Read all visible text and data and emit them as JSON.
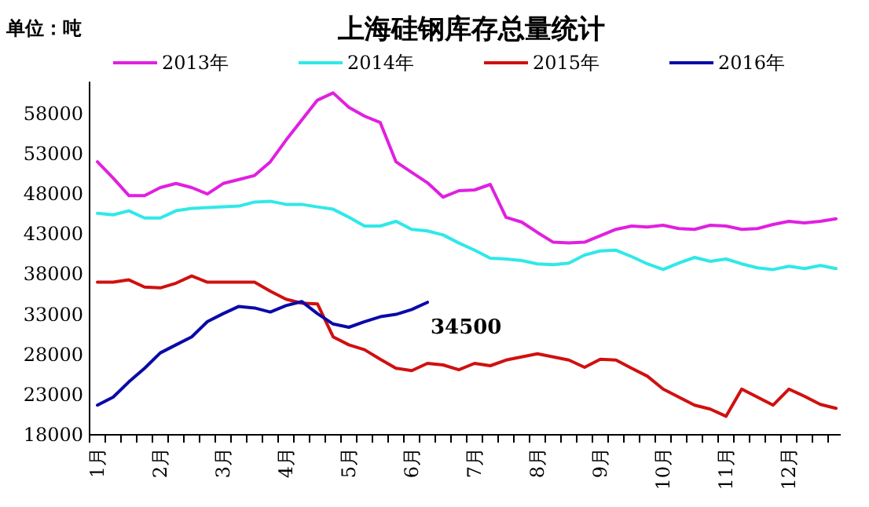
{
  "chart_data": {
    "type": "line",
    "title": "上海硅钢库存总量统计",
    "ylabel": "单位：吨",
    "categories": [
      "1月",
      null,
      null,
      null,
      "2月",
      null,
      null,
      null,
      "3月",
      null,
      null,
      null,
      "4月",
      null,
      null,
      null,
      "5月",
      null,
      null,
      null,
      "6月",
      null,
      null,
      null,
      "7月",
      null,
      null,
      null,
      "8月",
      null,
      null,
      null,
      "9月",
      null,
      null,
      null,
      "10月",
      null,
      null,
      null,
      "11月",
      null,
      null,
      null,
      "12月",
      null,
      null,
      null
    ],
    "ylim": [
      18000,
      62000
    ],
    "yticks": [
      18000,
      23000,
      28000,
      33000,
      38000,
      43000,
      48000,
      53000,
      58000
    ],
    "legend": "top",
    "grid": false,
    "marker": "none",
    "line_style": "solid",
    "series": [
      {
        "name": "2013年",
        "color": "#e020e0",
        "values": [
          52000,
          50000,
          47800,
          47800,
          48800,
          49300,
          48800,
          48000,
          49300,
          49800,
          50300,
          52000,
          54700,
          57200,
          59700,
          60600,
          58800,
          57700,
          56900,
          52000,
          50700,
          49400,
          47600,
          48400,
          48500,
          49200,
          45100,
          44500,
          43200,
          42000,
          41900,
          42000,
          42800,
          43600,
          44000,
          43900,
          44100,
          43700,
          43600,
          44100,
          44000,
          43600,
          43700,
          44200,
          44600,
          44400,
          44600,
          44900
        ]
      },
      {
        "name": "2014年",
        "color": "#30e8e8",
        "values": [
          45600,
          45400,
          45900,
          45000,
          45000,
          45900,
          46200,
          46300,
          46400,
          46500,
          47000,
          47100,
          46700,
          46700,
          46400,
          46100,
          45100,
          44000,
          44000,
          44600,
          43600,
          43400,
          42900,
          41900,
          41000,
          40000,
          39900,
          39700,
          39300,
          39200,
          39400,
          40400,
          40900,
          41000,
          40200,
          39300,
          38600,
          39400,
          40100,
          39600,
          39900,
          39300,
          38800,
          38600,
          39000,
          38700,
          39100,
          38700
        ]
      },
      {
        "name": "2015年",
        "color": "#d01010",
        "values": [
          37000,
          37000,
          37300,
          36400,
          36300,
          36900,
          37800,
          37000,
          37000,
          37000,
          37000,
          35900,
          34900,
          34400,
          34300,
          30200,
          29200,
          28600,
          27400,
          26300,
          26000,
          26900,
          26700,
          26100,
          26900,
          26600,
          27300,
          27700,
          28100,
          27700,
          27300,
          26400,
          27400,
          27300,
          26300,
          25300,
          23700,
          22700,
          21700,
          21200,
          20300,
          23700,
          22700,
          21700,
          23700,
          22800,
          21800,
          21300
        ]
      },
      {
        "name": "2016年",
        "color": "#0a0aa8",
        "values": [
          21700,
          22700,
          24600,
          26300,
          28200,
          29200,
          30200,
          32100,
          33100,
          34000,
          33800,
          33300,
          34100,
          34600,
          33100,
          31800,
          31400,
          32100,
          32700,
          33000,
          33600,
          34500,
          null,
          null,
          null,
          null,
          null,
          null,
          null,
          null,
          null,
          null,
          null,
          null,
          null,
          null,
          null,
          null,
          null,
          null,
          null,
          null,
          null,
          null,
          null,
          null,
          null,
          null
        ],
        "value_labels": [
          null,
          null,
          null,
          null,
          null,
          null,
          null,
          null,
          null,
          null,
          null,
          null,
          null,
          null,
          null,
          null,
          null,
          null,
          null,
          null,
          null,
          "34500",
          null,
          null,
          null,
          null,
          null,
          null,
          null,
          null,
          null,
          null,
          null,
          null,
          null,
          null,
          null,
          null,
          null,
          null,
          null,
          null,
          null,
          null,
          null,
          null,
          null,
          null
        ]
      }
    ]
  }
}
